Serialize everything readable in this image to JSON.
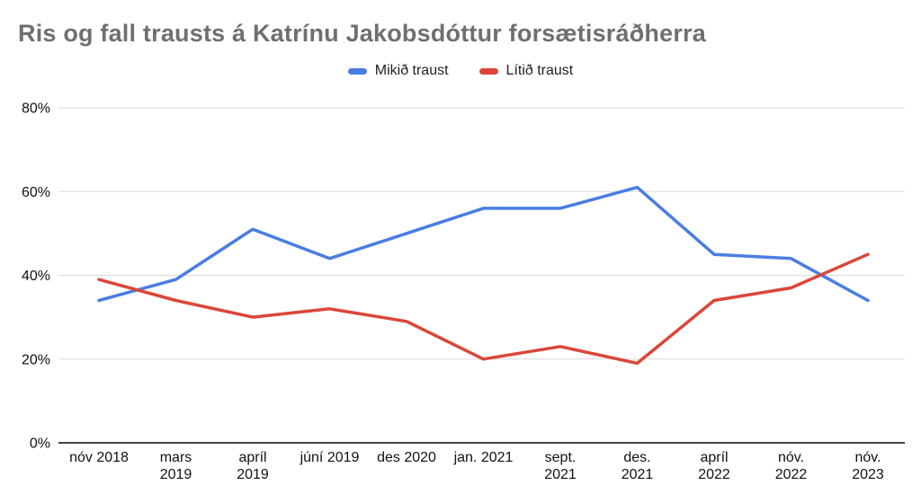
{
  "title": "Ris og fall trausts á Katrínu Jakobsdóttur forsætisráðherra",
  "legend": {
    "items": [
      {
        "label": "Mikið traust",
        "color": "#4a7de2"
      },
      {
        "label": "Lítið traust",
        "color": "#db4639"
      }
    ]
  },
  "chart_data": {
    "type": "line",
    "title": "Ris og fall trausts á Katrínu Jakobsdóttur forsætisráðherra",
    "categories": [
      "nóv 2018",
      "mars\n2019",
      "apríl\n2019",
      "júní 2019",
      "des 2020",
      "jan. 2021",
      "sept.\n2021",
      "des.\n2021",
      "apríl\n2022",
      "nóv.\n2022",
      "nóv.\n2023"
    ],
    "series": [
      {
        "name": "Mikið traust",
        "color": "#4a7de2",
        "values": [
          34,
          39,
          51,
          44,
          50,
          56,
          56,
          61,
          45,
          44,
          34
        ]
      },
      {
        "name": "Lítið traust",
        "color": "#db4639",
        "values": [
          39,
          34,
          30,
          32,
          29,
          20,
          23,
          19,
          34,
          37,
          45
        ]
      }
    ],
    "xlabel": "",
    "ylabel": "",
    "ylim": [
      0,
      80
    ],
    "yticks": [
      0,
      20,
      40,
      60,
      80
    ],
    "ytick_labels": [
      "0%",
      "20%",
      "40%",
      "60%",
      "80%"
    ],
    "grid": true,
    "legend_position": "top"
  }
}
